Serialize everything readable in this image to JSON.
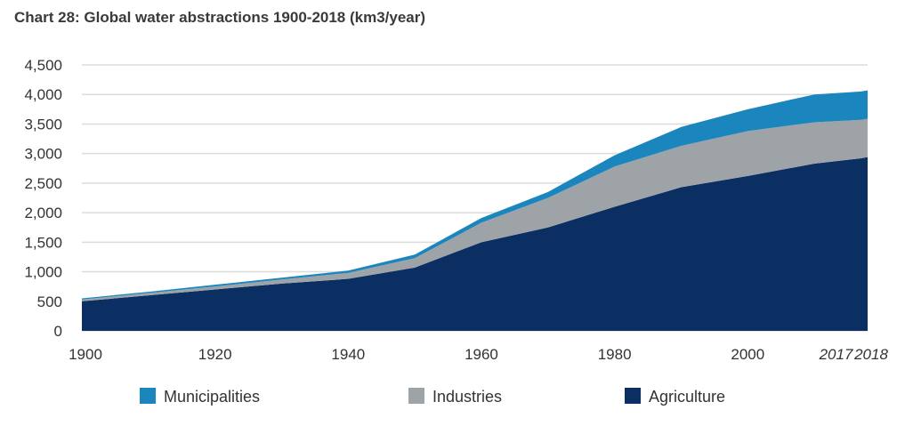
{
  "title": "Chart 28: Global water abstractions 1900-2018 (km3/year)",
  "chart_data": {
    "type": "area",
    "stacked": true,
    "title": "Chart 28: Global water abstractions 1900-2018 (km3/year)",
    "xlabel": "",
    "ylabel": "",
    "x": [
      1900,
      1910,
      1920,
      1930,
      1940,
      1950,
      1960,
      1970,
      1980,
      1990,
      2000,
      2010,
      2017,
      2018
    ],
    "x_tick_labels": [
      "1900",
      "1920",
      "1940",
      "1960",
      "1980",
      "2000",
      "2017",
      "2018"
    ],
    "x_tick_values": [
      1900,
      1920,
      1940,
      1960,
      1980,
      2000,
      2017,
      2018
    ],
    "italic_ticks": [
      "2017",
      "2018"
    ],
    "ylim": [
      0,
      4500
    ],
    "y_ticks": [
      0,
      500,
      1000,
      1500,
      2000,
      2500,
      3000,
      3500,
      4000,
      4500
    ],
    "y_tick_labels": [
      "0",
      "500",
      "1,000",
      "1,500",
      "2,000",
      "2,500",
      "3,000",
      "3,500",
      "4,000",
      "4,500"
    ],
    "grid": true,
    "legend_position": "bottom",
    "series": [
      {
        "name": "Agriculture",
        "color": "#0b2f63",
        "values": [
          500,
          600,
          700,
          800,
          880,
          1070,
          1500,
          1750,
          2100,
          2430,
          2620,
          2830,
          2920,
          2940
        ]
      },
      {
        "name": "Industries",
        "color": "#9ea3a8",
        "values": [
          30,
          40,
          50,
          70,
          100,
          160,
          330,
          500,
          680,
          700,
          760,
          700,
          650,
          650
        ]
      },
      {
        "name": "Municipalities",
        "color": "#1a86bd",
        "values": [
          20,
          20,
          30,
          30,
          40,
          60,
          80,
          100,
          190,
          320,
          370,
          470,
          480,
          480
        ]
      }
    ],
    "legend": [
      {
        "name": "Municipalities",
        "color": "#1a86bd"
      },
      {
        "name": "Industries",
        "color": "#9ea3a8"
      },
      {
        "name": "Agriculture",
        "color": "#0b2f63"
      }
    ]
  }
}
